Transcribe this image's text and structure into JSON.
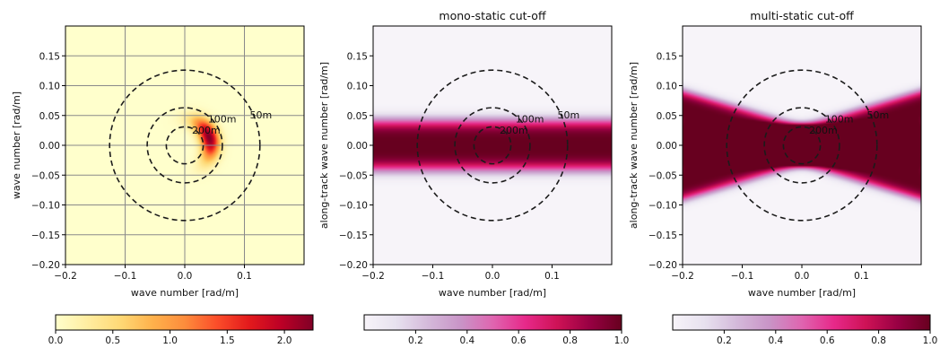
{
  "chart_data": [
    {
      "type": "heatmap",
      "title": "",
      "xlabel": "wave number [rad/m]",
      "ylabel": "wave number [rad/m]",
      "xlim": [
        -0.2,
        0.2
      ],
      "ylim": [
        -0.2,
        0.2
      ],
      "xticks": [
        -0.2,
        -0.1,
        0.0,
        0.1
      ],
      "xtick_labels": [
        "−0.2",
        "−0.1",
        "0.0",
        "0.1"
      ],
      "yticks": [
        -0.2,
        -0.15,
        -0.1,
        -0.05,
        0.0,
        0.05,
        0.1,
        0.15
      ],
      "ytick_labels": [
        "−0.20",
        "−0.15",
        "−0.10",
        "−0.05",
        "0.00",
        "0.05",
        "0.10",
        "0.15"
      ],
      "grid": true,
      "colormap": "YlOrRd",
      "colorbar": {
        "range": [
          0.0,
          2.25
        ],
        "ticks": [
          0.0,
          0.5,
          1.0,
          1.5,
          2.0
        ],
        "tick_labels": [
          "0.0",
          "0.5",
          "1.0",
          "1.5",
          "2.0"
        ],
        "colors": [
          "#ffffcc",
          "#ffeda0",
          "#fed976",
          "#feb24c",
          "#fd8d3c",
          "#fc4e2a",
          "#e31a1c",
          "#bd0026",
          "#800026"
        ]
      },
      "contours": [
        {
          "radius": 0.126,
          "label": "50m"
        },
        {
          "radius": 0.063,
          "label": "100m"
        },
        {
          "radius": 0.031,
          "label": "200m"
        }
      ],
      "feature": "peak near (0.04, 0.015), max ≈ 2.2"
    },
    {
      "type": "heatmap",
      "title": "mono-static cut-off",
      "xlabel": "wave number [rad/m]",
      "ylabel": "along-track wave number [rad/m]",
      "xlim": [
        -0.2,
        0.2
      ],
      "ylim": [
        -0.2,
        0.2
      ],
      "xticks": [
        -0.2,
        -0.1,
        0.0,
        0.1
      ],
      "xtick_labels": [
        "−0.2",
        "−0.1",
        "0.0",
        "0.1"
      ],
      "yticks": [
        -0.2,
        -0.15,
        -0.1,
        -0.05,
        0.0,
        0.05,
        0.1,
        0.15
      ],
      "ytick_labels": [
        "−0.20",
        "−0.15",
        "−0.10",
        "−0.05",
        "0.00",
        "0.05",
        "0.10",
        "0.15"
      ],
      "grid": false,
      "colormap": "PuRd",
      "colorbar": {
        "range": [
          0.0,
          1.0
        ],
        "ticks": [
          0.2,
          0.4,
          0.6,
          0.8,
          1.0
        ],
        "tick_labels": [
          "0.2",
          "0.4",
          "0.6",
          "0.8",
          "1.0"
        ],
        "colors": [
          "#f7f4f9",
          "#e7e1ef",
          "#d4b9da",
          "#c994c7",
          "#df65b0",
          "#e7298a",
          "#ce1256",
          "#980043",
          "#67001f"
        ]
      },
      "contours": [
        {
          "radius": 0.126,
          "label": "50m"
        },
        {
          "radius": 0.063,
          "label": "100m"
        },
        {
          "radius": 0.031,
          "label": "200m"
        }
      ],
      "feature": "horizontal band centered at 0, half-width ≈ 0.05"
    },
    {
      "type": "heatmap",
      "title": "multi-static cut-off",
      "xlabel": "wave number [rad/m]",
      "ylabel": "along-track wave number [rad/m]",
      "xlim": [
        -0.2,
        0.2
      ],
      "ylim": [
        -0.2,
        0.2
      ],
      "xticks": [
        -0.2,
        -0.1,
        0.0,
        0.1
      ],
      "xtick_labels": [
        "−0.2",
        "−0.1",
        "0.0",
        "0.1"
      ],
      "yticks": [
        -0.2,
        -0.15,
        -0.1,
        -0.05,
        0.0,
        0.05,
        0.1,
        0.15
      ],
      "ytick_labels": [
        "−0.20",
        "−0.15",
        "−0.10",
        "−0.05",
        "0.00",
        "0.05",
        "0.10",
        "0.15"
      ],
      "grid": false,
      "colormap": "PuRd",
      "colorbar": {
        "range": [
          0.0,
          1.0
        ],
        "ticks": [
          0.2,
          0.4,
          0.6,
          0.8,
          1.0
        ],
        "tick_labels": [
          "0.2",
          "0.4",
          "0.6",
          "0.8",
          "1.0"
        ],
        "colors": [
          "#f7f4f9",
          "#e7e1ef",
          "#d4b9da",
          "#c994c7",
          "#df65b0",
          "#e7298a",
          "#ce1256",
          "#980043",
          "#67001f"
        ]
      },
      "contours": [
        {
          "radius": 0.126,
          "label": "50m"
        },
        {
          "radius": 0.063,
          "label": "100m"
        },
        {
          "radius": 0.031,
          "label": "200m"
        }
      ],
      "feature": "three crossing bands (slopes ≈ -0.3, 0, 0.3) forming an X pattern"
    }
  ]
}
